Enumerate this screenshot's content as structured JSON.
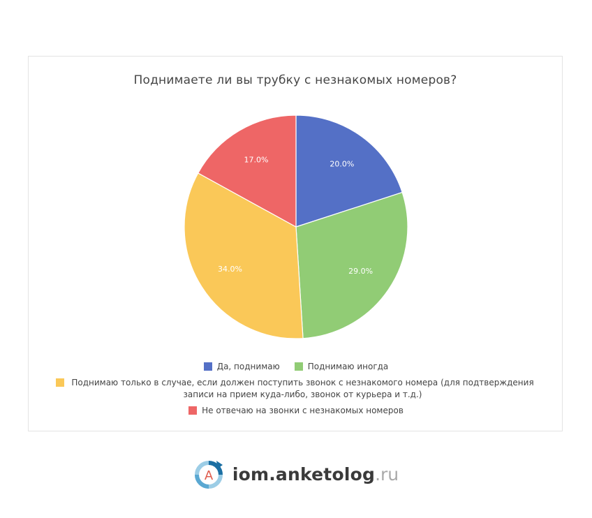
{
  "chart_data": {
    "type": "pie",
    "title": "Поднимаете ли вы трубку с незнакомых номеров?",
    "slices": [
      {
        "label": "Да, поднимаю",
        "value": 20.0,
        "display": "20.0%",
        "color": "#5470c6"
      },
      {
        "label": "Поднимаю иногда",
        "value": 29.0,
        "display": "29.0%",
        "color": "#91cc75"
      },
      {
        "label": "Поднимаю только в случае, если должен поступить звонок с незнакомого номера (для подтверждения записи на прием куда-либо, звонок от курьера и т.д.)",
        "value": 34.0,
        "display": "34.0%",
        "color": "#fac858"
      },
      {
        "label": "Не отвечаю на звонки с незнакомых номеров",
        "value": 17.0,
        "display": "17.0%",
        "color": "#ee6666"
      }
    ],
    "legend_position": "bottom"
  },
  "footer": {
    "brand": "iom.anketolog",
    "tld": ".ru",
    "logo_letter": "A"
  }
}
